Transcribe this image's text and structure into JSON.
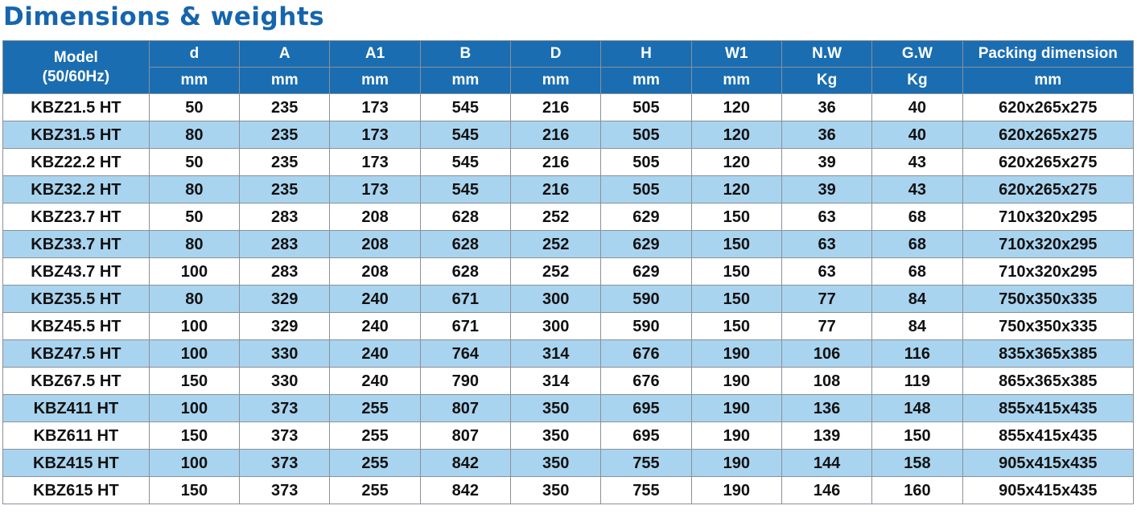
{
  "title": "Dimensions & weights",
  "table": {
    "model_header": "Model",
    "model_subheader": "(50/60Hz)",
    "columns": [
      {
        "label": "d",
        "unit": "mm"
      },
      {
        "label": "A",
        "unit": "mm"
      },
      {
        "label": "A1",
        "unit": "mm"
      },
      {
        "label": "B",
        "unit": "mm"
      },
      {
        "label": "D",
        "unit": "mm"
      },
      {
        "label": "H",
        "unit": "mm"
      },
      {
        "label": "W1",
        "unit": "mm"
      },
      {
        "label": "N.W",
        "unit": "Kg"
      },
      {
        "label": "G.W",
        "unit": "Kg"
      },
      {
        "label": "Packing dimension",
        "unit": "mm"
      }
    ],
    "rows": [
      [
        "KBZ21.5 HT",
        "50",
        "235",
        "173",
        "545",
        "216",
        "505",
        "120",
        "36",
        "40",
        "620x265x275"
      ],
      [
        "KBZ31.5 HT",
        "80",
        "235",
        "173",
        "545",
        "216",
        "505",
        "120",
        "36",
        "40",
        "620x265x275"
      ],
      [
        "KBZ22.2 HT",
        "50",
        "235",
        "173",
        "545",
        "216",
        "505",
        "120",
        "39",
        "43",
        "620x265x275"
      ],
      [
        "KBZ32.2 HT",
        "80",
        "235",
        "173",
        "545",
        "216",
        "505",
        "120",
        "39",
        "43",
        "620x265x275"
      ],
      [
        "KBZ23.7 HT",
        "50",
        "283",
        "208",
        "628",
        "252",
        "629",
        "150",
        "63",
        "68",
        "710x320x295"
      ],
      [
        "KBZ33.7 HT",
        "80",
        "283",
        "208",
        "628",
        "252",
        "629",
        "150",
        "63",
        "68",
        "710x320x295"
      ],
      [
        "KBZ43.7 HT",
        "100",
        "283",
        "208",
        "628",
        "252",
        "629",
        "150",
        "63",
        "68",
        "710x320x295"
      ],
      [
        "KBZ35.5 HT",
        "80",
        "329",
        "240",
        "671",
        "300",
        "590",
        "150",
        "77",
        "84",
        "750x350x335"
      ],
      [
        "KBZ45.5 HT",
        "100",
        "329",
        "240",
        "671",
        "300",
        "590",
        "150",
        "77",
        "84",
        "750x350x335"
      ],
      [
        "KBZ47.5 HT",
        "100",
        "330",
        "240",
        "764",
        "314",
        "676",
        "190",
        "106",
        "116",
        "835x365x385"
      ],
      [
        "KBZ67.5 HT",
        "150",
        "330",
        "240",
        "790",
        "314",
        "676",
        "190",
        "108",
        "119",
        "865x365x385"
      ],
      [
        "KBZ411 HT",
        "100",
        "373",
        "255",
        "807",
        "350",
        "695",
        "190",
        "136",
        "148",
        "855x415x435"
      ],
      [
        "KBZ611 HT",
        "150",
        "373",
        "255",
        "807",
        "350",
        "695",
        "190",
        "139",
        "150",
        "855x415x435"
      ],
      [
        "KBZ415 HT",
        "100",
        "373",
        "255",
        "842",
        "350",
        "755",
        "190",
        "144",
        "158",
        "905x415x435"
      ],
      [
        "KBZ615 HT",
        "150",
        "373",
        "255",
        "842",
        "350",
        "755",
        "190",
        "146",
        "160",
        "905x415x435"
      ]
    ]
  },
  "colors": {
    "title": "#1665ad",
    "header_bg": "#1a6db0",
    "header_text": "#ffffff",
    "stripe": "#a9d4ef",
    "border": "#8a9099"
  }
}
